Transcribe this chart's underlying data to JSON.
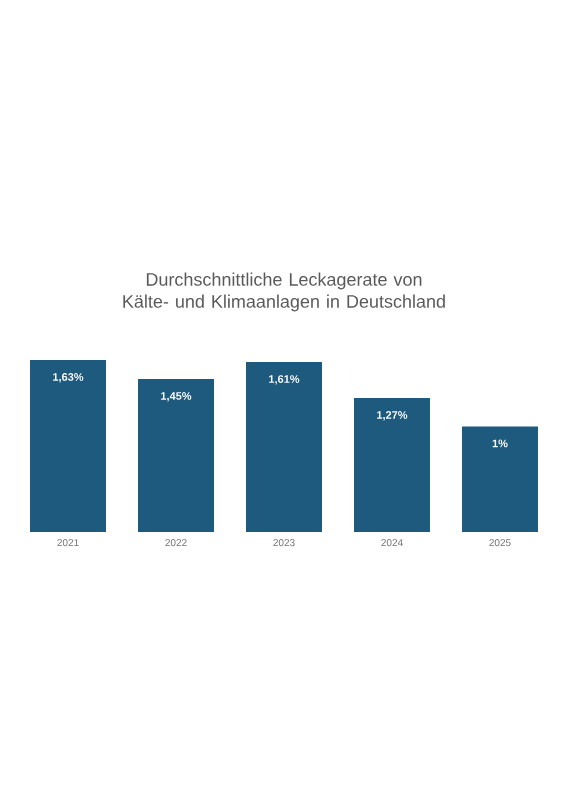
{
  "chart_data": {
    "type": "bar",
    "title": "Durchschnittliche Leckagerate von Kälte- und Klimaanlagen in Deutschland",
    "categories": [
      "2021",
      "2022",
      "2023",
      "2024",
      "2025"
    ],
    "values": [
      1.63,
      1.45,
      1.61,
      1.27,
      1
    ],
    "value_labels": [
      "1,63%",
      "1,45%",
      "1,61%",
      "1,27%",
      "1%"
    ],
    "color": "#1d5a7e"
  }
}
